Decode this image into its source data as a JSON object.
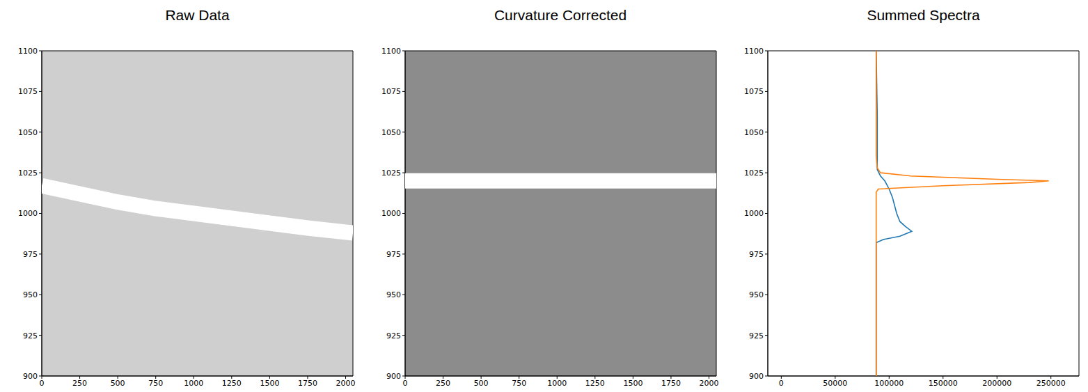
{
  "chart_data": [
    {
      "type": "image",
      "title": "Raw Data",
      "color": "#cfcfcf",
      "xlim": [
        0,
        2048
      ],
      "xticks": [
        0,
        250,
        500,
        750,
        1000,
        1250,
        1500,
        1750,
        2000
      ],
      "ylim": [
        900,
        1100
      ],
      "yticks": [
        900,
        925,
        950,
        975,
        1000,
        1025,
        1050,
        1075,
        1100
      ],
      "series": [
        {
          "color": "#ffffff",
          "x": [
            0,
            250,
            500,
            750,
            1000,
            1250,
            1500,
            1750,
            2048
          ],
          "values": [
            1017,
            1012,
            1007,
            1003,
            1000,
            997,
            994,
            991,
            988
          ]
        }
      ]
    },
    {
      "type": "image",
      "title": "Curvature Corrected",
      "color": "#8c8c8c",
      "xlim": [
        0,
        2048
      ],
      "xticks": [
        0,
        250,
        500,
        750,
        1000,
        1250,
        1500,
        1750,
        2000
      ],
      "ylim": [
        900,
        1100
      ],
      "yticks": [
        900,
        925,
        950,
        975,
        1000,
        1025,
        1050,
        1075,
        1100
      ],
      "series": [
        {
          "color": "#ffffff",
          "x": [
            0,
            250,
            500,
            750,
            1000,
            1250,
            1500,
            1750,
            2048
          ],
          "values": [
            1020,
            1020,
            1020,
            1020,
            1020,
            1020,
            1020,
            1020,
            1020
          ]
        }
      ]
    },
    {
      "type": "line",
      "title": "Summed Spectra",
      "xlim": [
        -12500,
        276000
      ],
      "xticks": [
        0,
        50000,
        100000,
        150000,
        200000,
        250000
      ],
      "ylim": [
        900,
        1100
      ],
      "yticks": [
        900,
        925,
        950,
        975,
        1000,
        1025,
        1050,
        1075,
        1100
      ],
      "series": [
        {
          "color": "#1f77b4",
          "x": [
            88000,
            88000,
            95000,
            110000,
            121000,
            115000,
            110000,
            107000,
            105000,
            103000,
            100000,
            96000,
            92000,
            89000,
            89000,
            88000
          ],
          "values": [
            900,
            982,
            984,
            986,
            989,
            992,
            995,
            1000,
            1005,
            1010,
            1015,
            1020,
            1023,
            1027,
            1060,
            1100
          ]
        },
        {
          "color": "#ff7f0e",
          "x": [
            88000,
            88000,
            90000,
            150000,
            230000,
            248000,
            200000,
            120000,
            92000,
            89000,
            88000,
            88000
          ],
          "values": [
            900,
            1013,
            1015,
            1017,
            1019,
            1020,
            1021,
            1023,
            1025,
            1028,
            1035,
            1100
          ]
        }
      ]
    }
  ]
}
